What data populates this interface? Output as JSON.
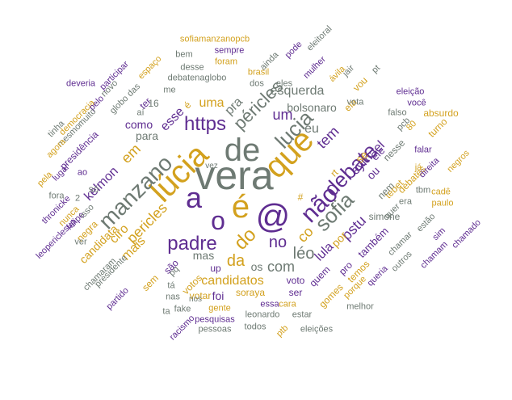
{
  "palette": {
    "purple": "#5f2d91",
    "gold": "#d3a11e",
    "gray": "#6e7a73"
  },
  "words": [
    "vera",
    "lúcia",
    "de",
    "que",
    "@",
    "é",
    "o",
    "não",
    "a",
    "manzano",
    "sofia",
    "debate",
    "padre",
    "lucia",
    "https",
    "péricles",
    "do",
    "pstu",
    "no",
    "léo",
    "co",
    "da",
    "com",
    "candidatos",
    "pericles",
    "em",
    "eu",
    "tem",
    "esquerda",
    "eymael",
    "lula",
    "por",
    "mais",
    "ciro",
    "foi",
    "candidata",
    "mas",
    "uma",
    "um",
    "para",
    "como",
    "esse",
    "pra",
    "kelmon",
    "simone",
    "bolsonaro",
    "também",
    "soraya",
    "voto",
    "votar",
    "up",
    "os",
    "ser",
    "quem",
    "nesse",
    "gomes",
    "temos",
    "tebet",
    "votos",
    "ou",
    "ele",
    "era",
    "se",
    "pro",
    "rt",
    "ela",
    "vou",
    "falar",
    "nem",
    "debates",
    "turno",
    "sofiamanzanopcb",
    "sempre",
    "participar",
    "espaço",
    "bem",
    "foram",
    "brasil",
    "ainda",
    "pode",
    "eleitoral",
    "jair",
    "deveria",
    "novo",
    "das",
    "me",
    "desse",
    "debatenaglobo",
    "dos",
    "eles",
    "mulher",
    "ávila",
    "vota",
    "pt",
    "eleição",
    "você",
    "democracia",
    "pelo",
    "ter",
    "é",
    "globo",
    "aí",
    "16",
    "falso",
    "absurdo",
    "tinha",
    "mesmo",
    "muito",
    "presidência",
    "agora",
    "ao",
    "lugar",
    "nunca",
    "pela",
    "thronicke",
    "felipe",
    "fora",
    "só",
    "isso",
    "2",
    "negra",
    "leopericlesup",
    "ver",
    "presidente",
    "chamaram",
    "partido",
    "são",
    "sem",
    "tá",
    "nas",
    "fake",
    "ta",
    "racismo",
    "gente",
    "leonardo",
    "pesquisas",
    "todos",
    "pessoas",
    "eleições",
    "ptb",
    "estar",
    "cara",
    "melhor",
    "porque",
    "queria",
    "chamar",
    "outros",
    "estão",
    "sim",
    "chamam",
    "chamado",
    "paulo",
    "cadê",
    "tbm",
    "negros",
    "direita",
    "pcb",
    "80",
    "vez",
    "pq",
    "essa",
    "nos",
    "já",
    "#",
    "quer"
  ]
}
